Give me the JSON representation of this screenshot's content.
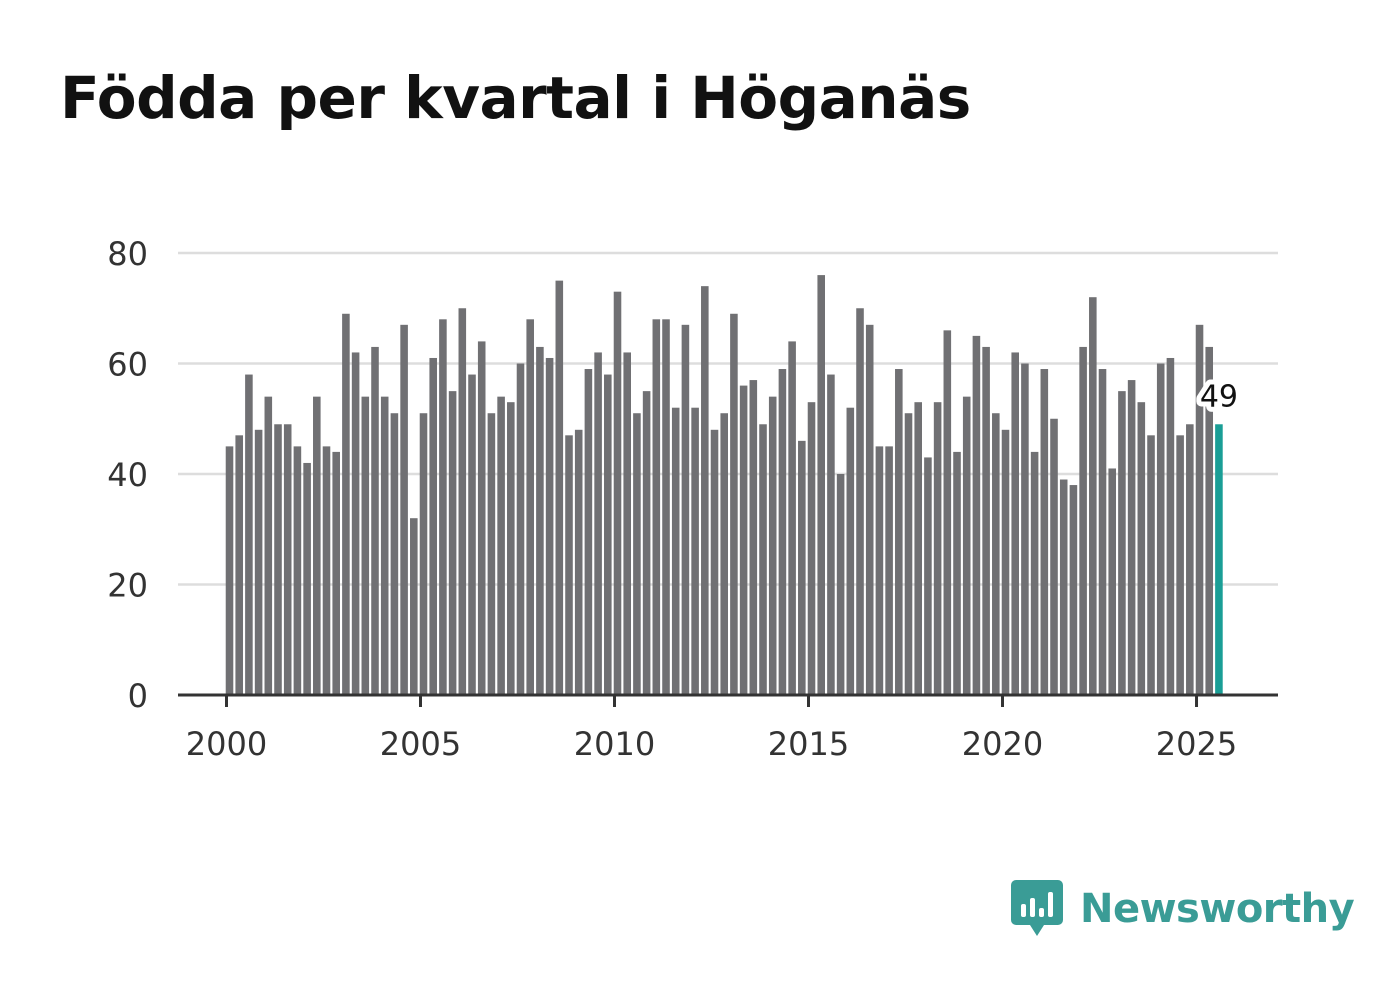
{
  "chart_data": {
    "type": "bar",
    "title": "Födda per kvartal i Höganäs",
    "xlabel": "",
    "ylabel": "",
    "ylim": [
      0,
      80
    ],
    "xlim": [
      1998.75,
      2027.1
    ],
    "yticks": [
      0,
      20,
      40,
      60,
      80
    ],
    "ytick_labels": [
      "0",
      "20",
      "40",
      "60",
      "80"
    ],
    "xticks": [
      2000,
      2005,
      2010,
      2015,
      2020,
      2025
    ],
    "xtick_labels": [
      "2000",
      "2005",
      "2010",
      "2015",
      "2020",
      "2025"
    ],
    "start_year": 2000,
    "periods_per_year": 4,
    "grid": true,
    "values": [
      45,
      47,
      58,
      48,
      54,
      49,
      49,
      45,
      42,
      54,
      45,
      44,
      69,
      62,
      54,
      63,
      54,
      51,
      67,
      32,
      51,
      61,
      68,
      55,
      70,
      58,
      64,
      51,
      54,
      53,
      60,
      68,
      63,
      61,
      75,
      47,
      48,
      59,
      62,
      58,
      73,
      62,
      51,
      55,
      68,
      68,
      52,
      67,
      52,
      74,
      48,
      51,
      69,
      56,
      57,
      49,
      54,
      59,
      64,
      46,
      53,
      76,
      58,
      40,
      52,
      70,
      67,
      45,
      45,
      59,
      51,
      53,
      43,
      53,
      66,
      44,
      54,
      65,
      63,
      51,
      48,
      62,
      60,
      44,
      59,
      50,
      39,
      38,
      63,
      72,
      59,
      41,
      55,
      57,
      53,
      47,
      60,
      61,
      47,
      49,
      67,
      63,
      49
    ],
    "highlight_index": 102,
    "highlight_label": "49",
    "colors": {
      "bar": "#707073",
      "highlight": "#1a9e96",
      "grid": "#dddddd",
      "axis": "#333333",
      "tick_text": "#333333"
    }
  },
  "brand": {
    "name": "Newsworthy",
    "color": "#3a9c96"
  }
}
